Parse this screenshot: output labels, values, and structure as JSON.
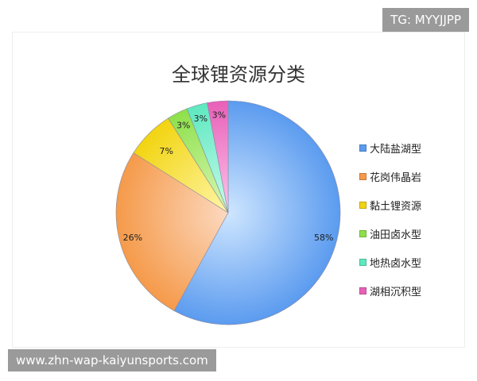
{
  "watermark_top": "TG: MYYJJPP",
  "watermark_bottom": "www.zhn-wap-kaiyunsports.com",
  "chart_data": {
    "type": "pie",
    "title": "全球锂资源分类",
    "categories": [
      "大陆盐湖型",
      "花岗伟晶岩",
      "黏土锂资源",
      "油田卤水型",
      "地热卤水型",
      "湖相沉积型"
    ],
    "values": [
      58,
      26,
      7,
      3,
      3,
      3
    ],
    "labels": [
      "58%",
      "26%",
      "7%",
      "3%",
      "3%",
      "3%"
    ],
    "colors": [
      "#5b9bef",
      "#f59a4a",
      "#f2d410",
      "#8ee04a",
      "#5ee8c0",
      "#e860b8"
    ],
    "light_colors": [
      "#cfe6ff",
      "#fcd9c0",
      "#fff6a8",
      "#d9f8b8",
      "#c8fbec",
      "#fcc6ec"
    ],
    "start": "top",
    "direction": "clockwise",
    "legend_position": "right"
  }
}
